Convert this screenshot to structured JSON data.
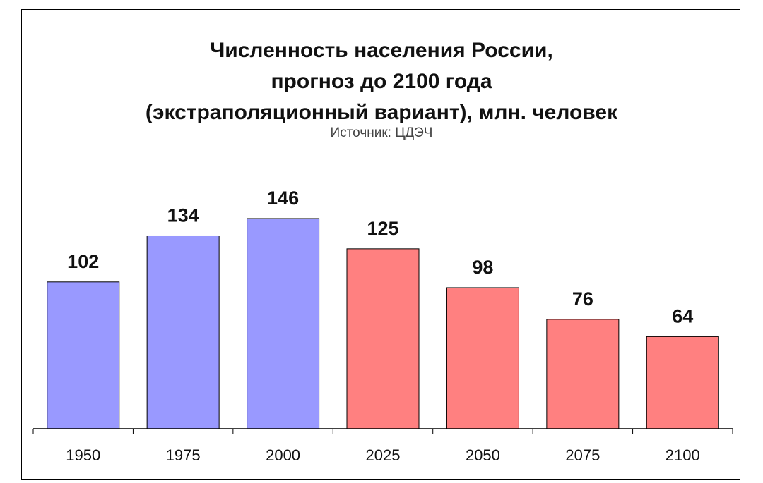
{
  "chart_data": {
    "type": "bar",
    "title_lines": [
      "Численность населения России,",
      "прогноз до 2100 года",
      "(экстраполяционный вариант), млн. человек"
    ],
    "subtitle": "Источник: ЦДЭЧ",
    "categories": [
      "1950",
      "1975",
      "2000",
      "2025",
      "2050",
      "2075",
      "2100"
    ],
    "values": [
      102,
      134,
      146,
      125,
      98,
      76,
      64
    ],
    "data_labels": [
      "102",
      "134",
      "146",
      "125",
      "98",
      "76",
      "64"
    ],
    "bar_colors": [
      "#9999ff",
      "#9999ff",
      "#9999ff",
      "#ff8080",
      "#ff8080",
      "#ff8080",
      "#ff8080"
    ],
    "ylim": [
      0,
      146
    ],
    "grid": false,
    "legend": "none"
  }
}
